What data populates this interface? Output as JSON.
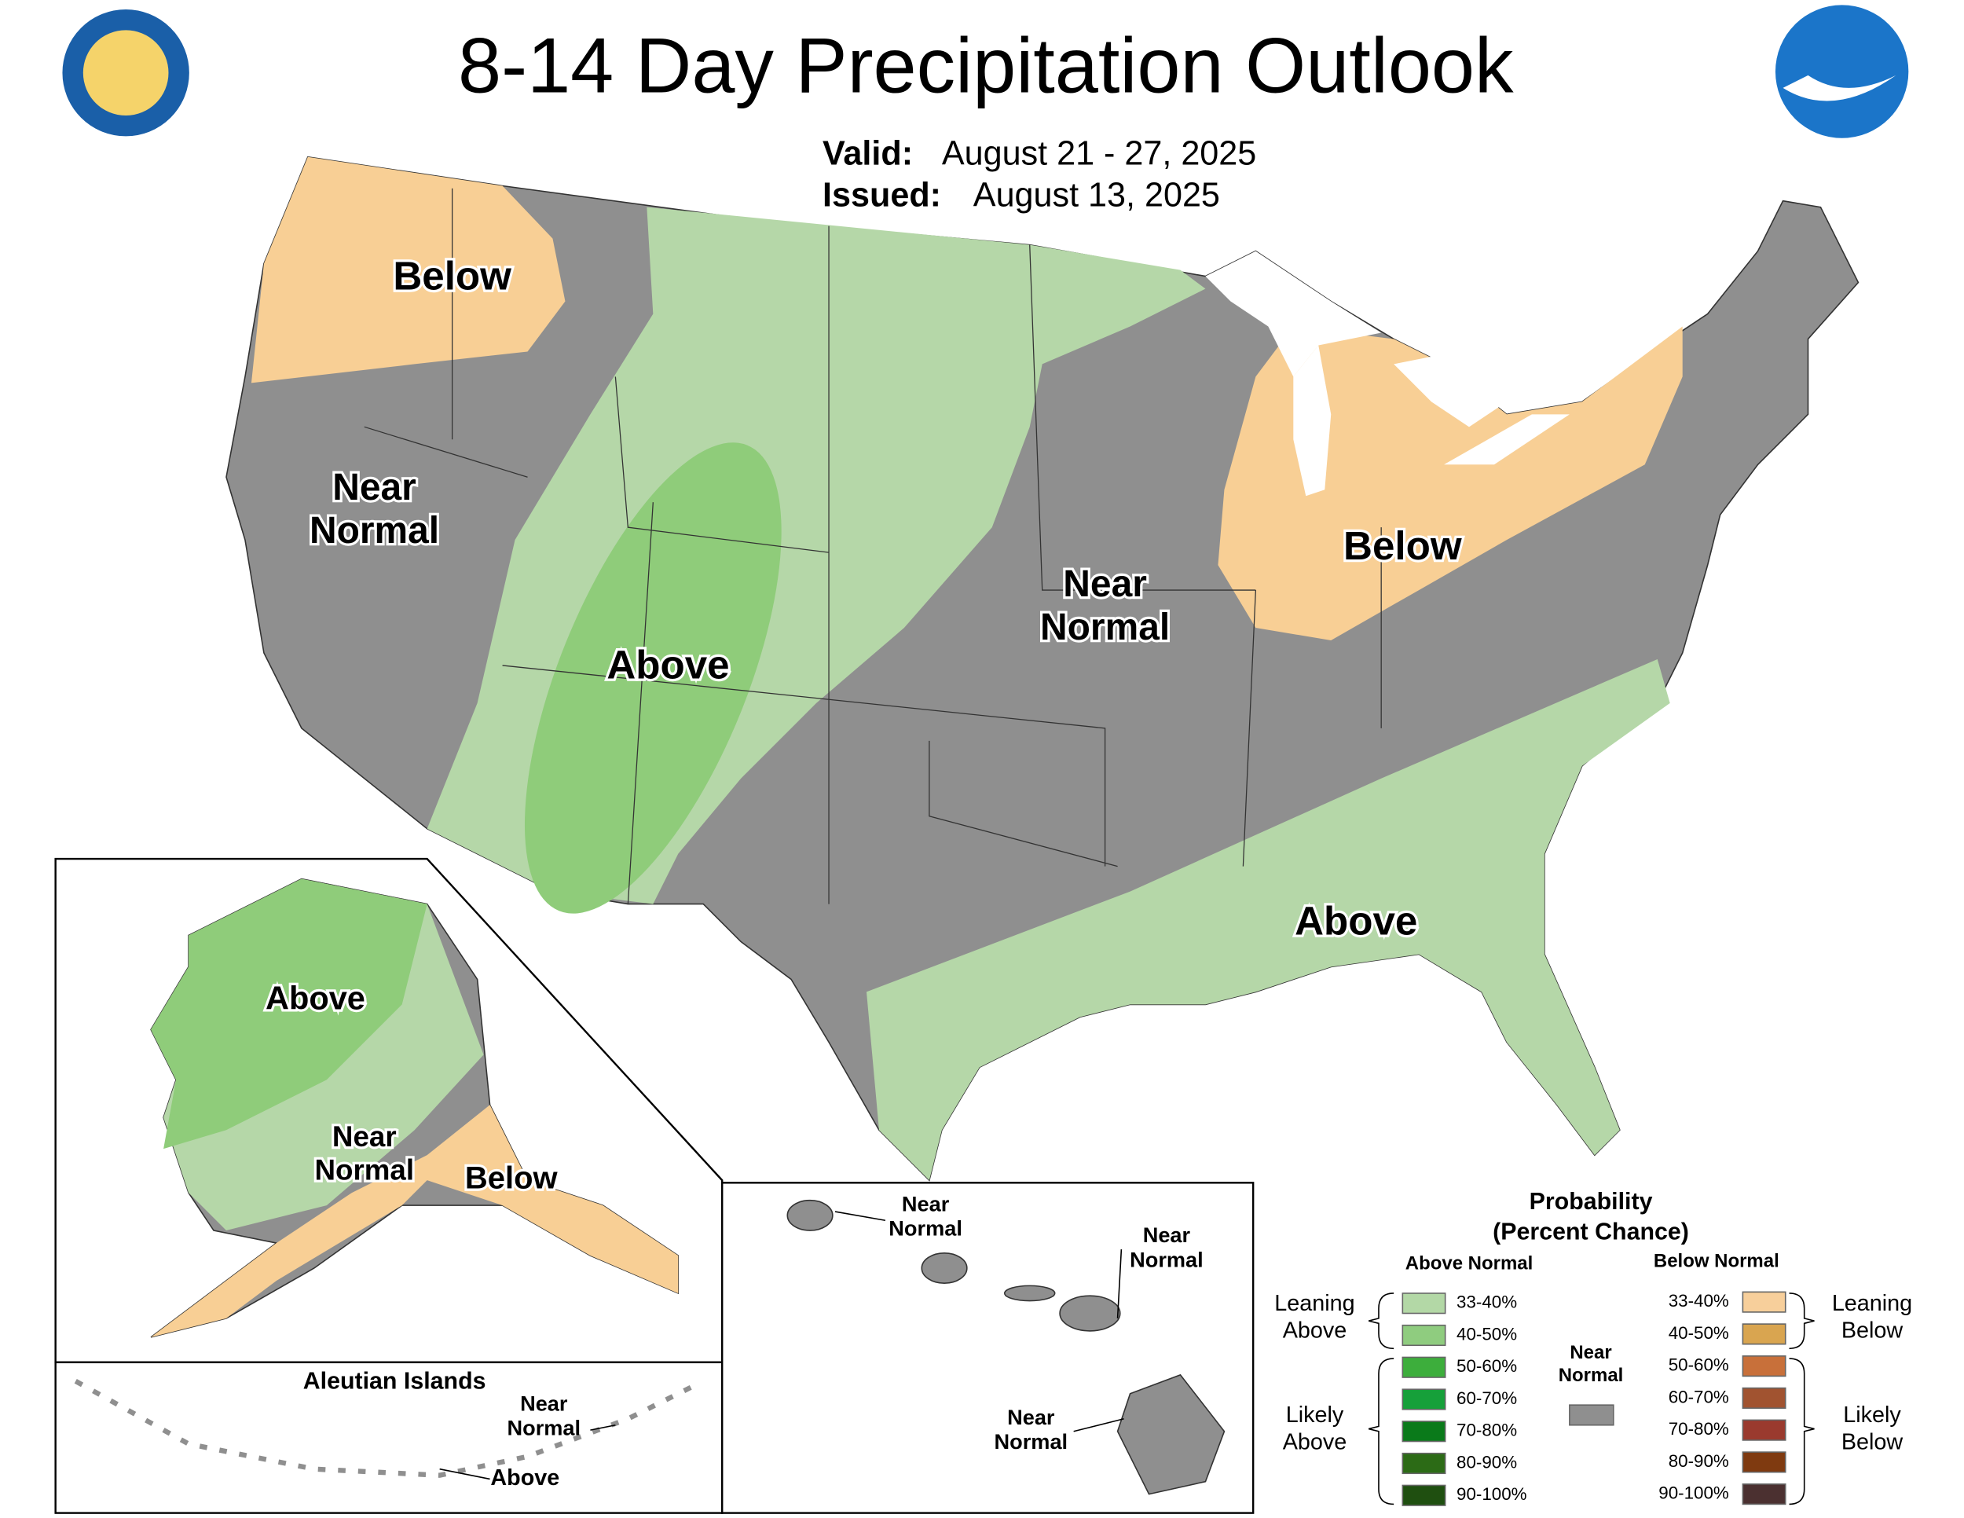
{
  "header": {
    "title": "8-14 Day Precipitation Outlook",
    "valid_label": "Valid:",
    "valid_dates": "August 21 - 27, 2025",
    "issued_label": "Issued:",
    "issued_date": "August 13, 2025"
  },
  "map_labels": [
    {
      "lines": [
        "Below"
      ]
    },
    {
      "lines": [
        "Near",
        "Normal"
      ]
    },
    {
      "lines": [
        "Above"
      ]
    },
    {
      "lines": [
        "Near",
        "Normal"
      ]
    },
    {
      "lines": [
        "Below"
      ]
    },
    {
      "lines": [
        "Above"
      ]
    },
    {
      "lines": [
        "Above"
      ]
    },
    {
      "lines": [
        "Near",
        "Normal"
      ]
    },
    {
      "lines": [
        "Below"
      ]
    },
    {
      "lines": [
        "Near",
        "Normal"
      ]
    },
    {
      "lines": [
        "Above"
      ]
    },
    {
      "lines": [
        "Near",
        "Normal"
      ]
    },
    {
      "lines": [
        "Near",
        "Normal"
      ]
    },
    {
      "lines": [
        "Near",
        "Normal"
      ]
    }
  ],
  "insets": {
    "aleutian_title": "Aleutian Islands"
  },
  "legend": {
    "title": "Probability",
    "subtitle": "(Percent Chance)",
    "above_header": "Above Normal",
    "below_header": "Below Normal",
    "leaning_above": [
      "Leaning",
      "Above"
    ],
    "likely_above": [
      "Likely",
      "Above"
    ],
    "leaning_below": [
      "Leaning",
      "Below"
    ],
    "likely_below": [
      "Likely",
      "Below"
    ],
    "near_normal": [
      "Near",
      "Normal"
    ],
    "near_normal_color": "#8f8f8f",
    "above": [
      {
        "label": "33-40%",
        "color": "#b3d8a6"
      },
      {
        "label": "40-50%",
        "color": "#8fcc7f"
      },
      {
        "label": "50-60%",
        "color": "#3dae3c"
      },
      {
        "label": "60-70%",
        "color": "#16a03a"
      },
      {
        "label": "70-80%",
        "color": "#0a7a1a"
      },
      {
        "label": "80-90%",
        "color": "#2c6b16"
      },
      {
        "label": "90-100%",
        "color": "#1f4f10"
      }
    ],
    "below": [
      {
        "label": "33-40%",
        "color": "#f7cf9b"
      },
      {
        "label": "40-50%",
        "color": "#d9a550"
      },
      {
        "label": "50-60%",
        "color": "#c8703a"
      },
      {
        "label": "60-70%",
        "color": "#a15330"
      },
      {
        "label": "70-80%",
        "color": "#9a3a2e"
      },
      {
        "label": "80-90%",
        "color": "#7f3a10"
      },
      {
        "label": "90-100%",
        "color": "#4b3030"
      }
    ]
  }
}
